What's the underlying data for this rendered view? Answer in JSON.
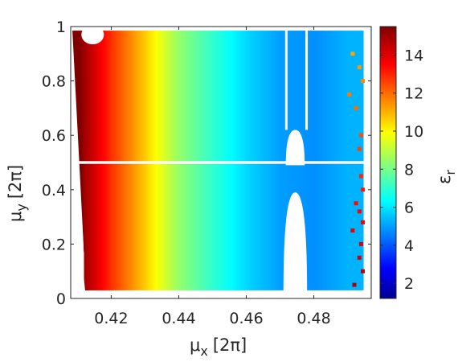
{
  "chart_data": {
    "type": "scatter",
    "title": "",
    "x_axis": {
      "label_main": "μ",
      "label_sub": "x",
      "label_unit": "[2π]",
      "range": [
        0.408,
        0.497
      ],
      "ticks": [
        0.42,
        0.44,
        0.46,
        0.48
      ],
      "tick_labels": [
        "0.42",
        "0.44",
        "0.46",
        "0.48"
      ]
    },
    "y_axis": {
      "label_main": "μ",
      "label_sub": "y",
      "label_unit": "[2π]",
      "range": [
        0,
        1
      ],
      "ticks": [
        0,
        0.2,
        0.4,
        0.6,
        0.8,
        1
      ],
      "tick_labels": [
        "0",
        "0.2",
        "0.4",
        "0.6",
        "0.8",
        "1"
      ]
    },
    "colorbar": {
      "label_main": "ε",
      "label_sub": "r",
      "colormap": "jet",
      "range": [
        1.2,
        15.5
      ],
      "ticks": [
        2,
        4,
        6,
        8,
        10,
        12,
        14
      ],
      "tick_labels": [
        "2",
        "4",
        "6",
        "8",
        "10",
        "12",
        "14"
      ]
    },
    "grid": false,
    "legend": "none",
    "relationship": {
      "description_points": [
        {
          "mu_x": 0.41,
          "epsilon_r": 15.5
        },
        {
          "mu_x": 0.42,
          "epsilon_r": 13.0
        },
        {
          "mu_x": 0.43,
          "epsilon_r": 10.8
        },
        {
          "mu_x": 0.44,
          "epsilon_r": 8.6
        },
        {
          "mu_x": 0.45,
          "epsilon_r": 7.2
        },
        {
          "mu_x": 0.46,
          "epsilon_r": 6.0
        },
        {
          "mu_x": 0.47,
          "epsilon_r": 5.2
        },
        {
          "mu_x": 0.48,
          "epsilon_r": 5.0
        },
        {
          "mu_x": 0.49,
          "epsilon_r": 5.5
        }
      ]
    }
  }
}
